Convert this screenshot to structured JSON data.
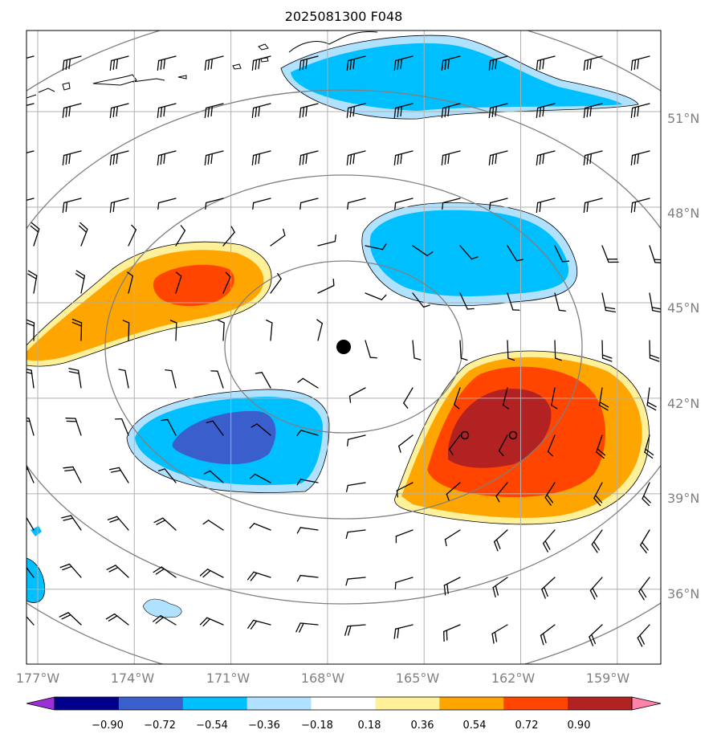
{
  "title": "2025081300 F048",
  "map": {
    "lat_labels": [
      "51°N",
      "48°N",
      "45°N",
      "42°N",
      "39°N",
      "36°N"
    ],
    "lat_values": [
      51,
      48,
      45,
      42,
      39,
      36
    ],
    "lon_labels": [
      "177°W",
      "174°W",
      "171°W",
      "168°W",
      "165°W",
      "162°W",
      "159°W"
    ],
    "lon_values": [
      -177,
      -174,
      -171,
      -168,
      -165,
      -162,
      -159
    ],
    "extent": {
      "lon_min": -177,
      "lon_max": -157.3,
      "lat_min": 33.8,
      "lat_max": 53.7
    },
    "gridlines": true,
    "center_marker": {
      "lon": -167.7,
      "lat": 43.8
    },
    "range_rings_count": 5,
    "open_markers": [
      {
        "lon": -163.5,
        "lat": 40.9
      },
      {
        "lon": -162.0,
        "lat": 40.9
      }
    ],
    "wind_barbs": true
  },
  "colorbar": {
    "ticks": [
      "−0.90",
      "−0.72",
      "−0.54",
      "−0.36",
      "−0.18",
      "0.18",
      "0.36",
      "0.54",
      "0.72",
      "0.90"
    ],
    "colors": [
      "#9b30d9",
      "#00008b",
      "#3a5fcd",
      "#00bfff",
      "#b0e2ff",
      "#ffffff",
      "#fff09a",
      "#ffa500",
      "#ff4500",
      "#b22222",
      "#ff82ab"
    ],
    "extend": "both"
  },
  "colors": {
    "grid": "#b0b0b0",
    "rings": "#808080",
    "coast": "#000000"
  }
}
